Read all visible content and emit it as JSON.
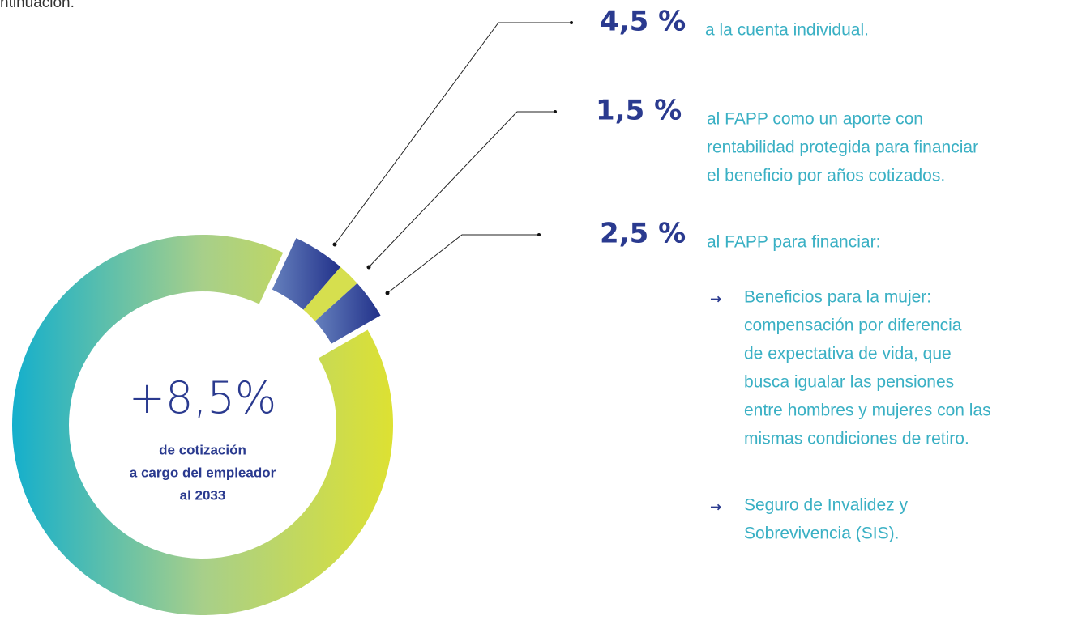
{
  "intro_fragment": "ntinuación.",
  "center": {
    "value": "+8,5%",
    "caption": [
      "de cotización",
      "a cargo del empleador",
      "al 2033"
    ]
  },
  "items": [
    {
      "percent": "4,5 %",
      "lines": [
        "a la cuenta individual."
      ]
    },
    {
      "percent": "1,5 %",
      "lines": [
        "al FAPP como un aporte con",
        "rentabilidad protegida para financiar",
        "el beneficio por años cotizados."
      ]
    },
    {
      "percent": "2,5 %",
      "lines": [
        "al FAPP para financiar:"
      ]
    }
  ],
  "bullets": [
    {
      "lines": [
        "Beneficios para la mujer:",
        "compensación por diferencia",
        "de expectativa de vida, que",
        "busca igualar las pensiones",
        "entre hombres y mujeres con las",
        "mismas condiciones de retiro."
      ]
    },
    {
      "lines": [
        "Seguro de Invalidez y",
        "Sobrevivencia (SIS)."
      ]
    }
  ]
}
